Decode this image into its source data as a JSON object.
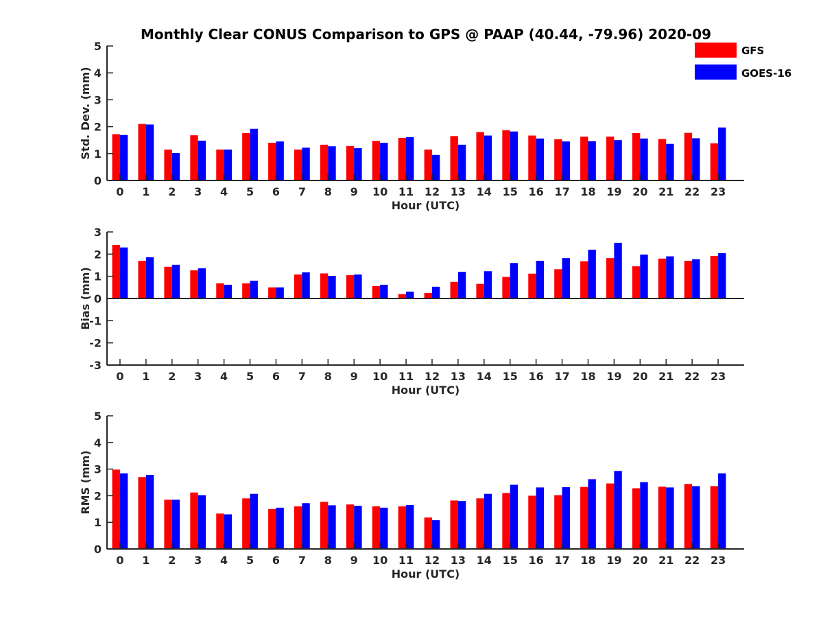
{
  "chart_data": {
    "type": "bar",
    "title": "Monthly Clear CONUS Comparison to GPS @ PAAP (40.44, -79.96) 2020-09",
    "legend": {
      "placement": "top-right",
      "entries": [
        {
          "name": "GFS",
          "color": "#ff0000"
        },
        {
          "name": "GOES-16",
          "color": "#0000ff"
        }
      ]
    },
    "categories": [
      "0",
      "1",
      "2",
      "3",
      "4",
      "5",
      "6",
      "7",
      "8",
      "9",
      "10",
      "11",
      "12",
      "13",
      "14",
      "15",
      "16",
      "17",
      "18",
      "19",
      "20",
      "21",
      "22",
      "23"
    ],
    "panels": [
      {
        "id": "std",
        "xlabel": "Hour (UTC)",
        "ylabel": "Std. Dev. (mm)",
        "ylim": [
          0,
          5
        ],
        "yticks": [
          "0",
          "1",
          "2",
          "3",
          "4",
          "5"
        ],
        "series": [
          {
            "name": "GFS",
            "color": "#ff0000",
            "values": [
              1.72,
              2.1,
              1.15,
              1.68,
              1.15,
              1.76,
              1.4,
              1.15,
              1.33,
              1.28,
              1.47,
              1.58,
              1.15,
              1.65,
              1.8,
              1.87,
              1.67,
              1.53,
              1.63,
              1.63,
              1.76,
              1.54,
              1.77,
              1.38
            ]
          },
          {
            "name": "GOES-16",
            "color": "#0000ff",
            "values": [
              1.69,
              2.08,
              1.02,
              1.48,
              1.15,
              1.92,
              1.45,
              1.22,
              1.27,
              1.2,
              1.4,
              1.61,
              0.95,
              1.33,
              1.67,
              1.82,
              1.56,
              1.45,
              1.46,
              1.5,
              1.56,
              1.36,
              1.57,
              1.97
            ]
          }
        ]
      },
      {
        "id": "bias",
        "xlabel": "Hour (UTC)",
        "ylabel": "Bias (mm)",
        "ylim": [
          -3,
          3
        ],
        "yticks": [
          "-3",
          "-2",
          "-1",
          "0",
          "1",
          "2",
          "3"
        ],
        "series": [
          {
            "name": "GFS",
            "color": "#ff0000",
            "values": [
              2.41,
              1.7,
              1.43,
              1.27,
              0.68,
              0.68,
              0.5,
              1.08,
              1.13,
              1.05,
              0.56,
              0.2,
              0.25,
              0.75,
              0.66,
              0.97,
              1.12,
              1.32,
              1.68,
              1.82,
              1.45,
              1.8,
              1.7,
              1.92
            ]
          },
          {
            "name": "GOES-16",
            "color": "#0000ff",
            "values": [
              2.3,
              1.86,
              1.52,
              1.36,
              0.62,
              0.8,
              0.5,
              1.18,
              1.02,
              1.08,
              0.62,
              0.31,
              0.53,
              1.2,
              1.23,
              1.6,
              1.7,
              1.82,
              2.2,
              2.51,
              1.98,
              1.9,
              1.77,
              2.04
            ]
          }
        ]
      },
      {
        "id": "rms",
        "xlabel": "Hour (UTC)",
        "ylabel": "RMS (mm)",
        "ylim": [
          0,
          5
        ],
        "yticks": [
          "0",
          "1",
          "2",
          "3",
          "4",
          "5"
        ],
        "series": [
          {
            "name": "GFS",
            "color": "#ff0000",
            "values": [
              2.98,
              2.7,
              1.85,
              2.12,
              1.33,
              1.9,
              1.5,
              1.6,
              1.77,
              1.67,
              1.6,
              1.6,
              1.18,
              1.82,
              1.9,
              2.1,
              2.0,
              2.02,
              2.33,
              2.46,
              2.28,
              2.34,
              2.44,
              2.36
            ]
          },
          {
            "name": "GOES-16",
            "color": "#0000ff",
            "values": [
              2.84,
              2.78,
              1.85,
              2.02,
              1.3,
              2.07,
              1.55,
              1.72,
              1.64,
              1.62,
              1.55,
              1.65,
              1.08,
              1.8,
              2.07,
              2.41,
              2.31,
              2.32,
              2.62,
              2.93,
              2.51,
              2.31,
              2.36,
              2.84
            ]
          }
        ]
      }
    ]
  }
}
